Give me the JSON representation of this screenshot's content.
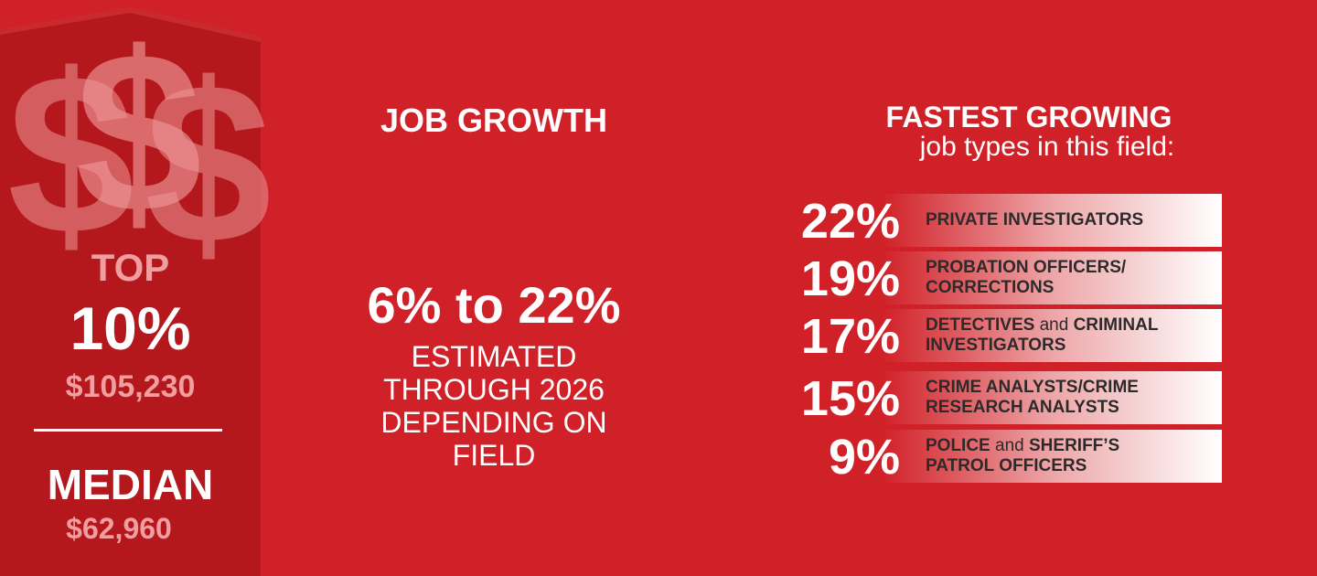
{
  "colors": {
    "background": "#d12128",
    "banner": "#b5181c",
    "banner_top": "#c92a2e",
    "accent_pink": "#f19ea0",
    "label_text": "#2e2a2a"
  },
  "salary": {
    "icon": "dollar-signs",
    "top_label": "TOP",
    "top_percent": "10%",
    "top_amount": "$105,230",
    "median_label": "MEDIAN",
    "median_amount": "$62,960"
  },
  "job_growth": {
    "title": "JOB GROWTH",
    "range": "6% to 22%",
    "description_lines": [
      "ESTIMATED",
      "THROUGH 2026",
      "DEPENDING ON",
      "FIELD"
    ]
  },
  "fastest_growing": {
    "title": "FASTEST GROWING",
    "subtitle": "job types in this field:",
    "items": [
      {
        "percent": "22%",
        "line1": [
          {
            "text": "PRIVATE INVESTIGATORS",
            "bold": true
          }
        ],
        "line2": []
      },
      {
        "percent": "19%",
        "line1": [
          {
            "text": "PROBATION OFFICERS/",
            "bold": true
          }
        ],
        "line2": [
          {
            "text": "CORRECTIONS",
            "bold": true
          }
        ]
      },
      {
        "percent": "17%",
        "line1": [
          {
            "text": "DETECTIVES",
            "bold": true
          },
          {
            "text": " and ",
            "bold": false
          },
          {
            "text": "CRIMINAL",
            "bold": true
          }
        ],
        "line2": [
          {
            "text": "INVESTIGATORS",
            "bold": true
          }
        ]
      },
      {
        "percent": "15%",
        "line1": [
          {
            "text": "CRIME ANALYSTS/CRIME",
            "bold": true
          }
        ],
        "line2": [
          {
            "text": "RESEARCH ANALYSTS",
            "bold": true
          }
        ]
      },
      {
        "percent": "9%",
        "line1": [
          {
            "text": "POLICE",
            "bold": true
          },
          {
            "text": " and ",
            "bold": false
          },
          {
            "text": "SHERIFF’S",
            "bold": true
          }
        ],
        "line2": [
          {
            "text": "PATROL OFFICERS",
            "bold": true
          }
        ]
      }
    ]
  }
}
